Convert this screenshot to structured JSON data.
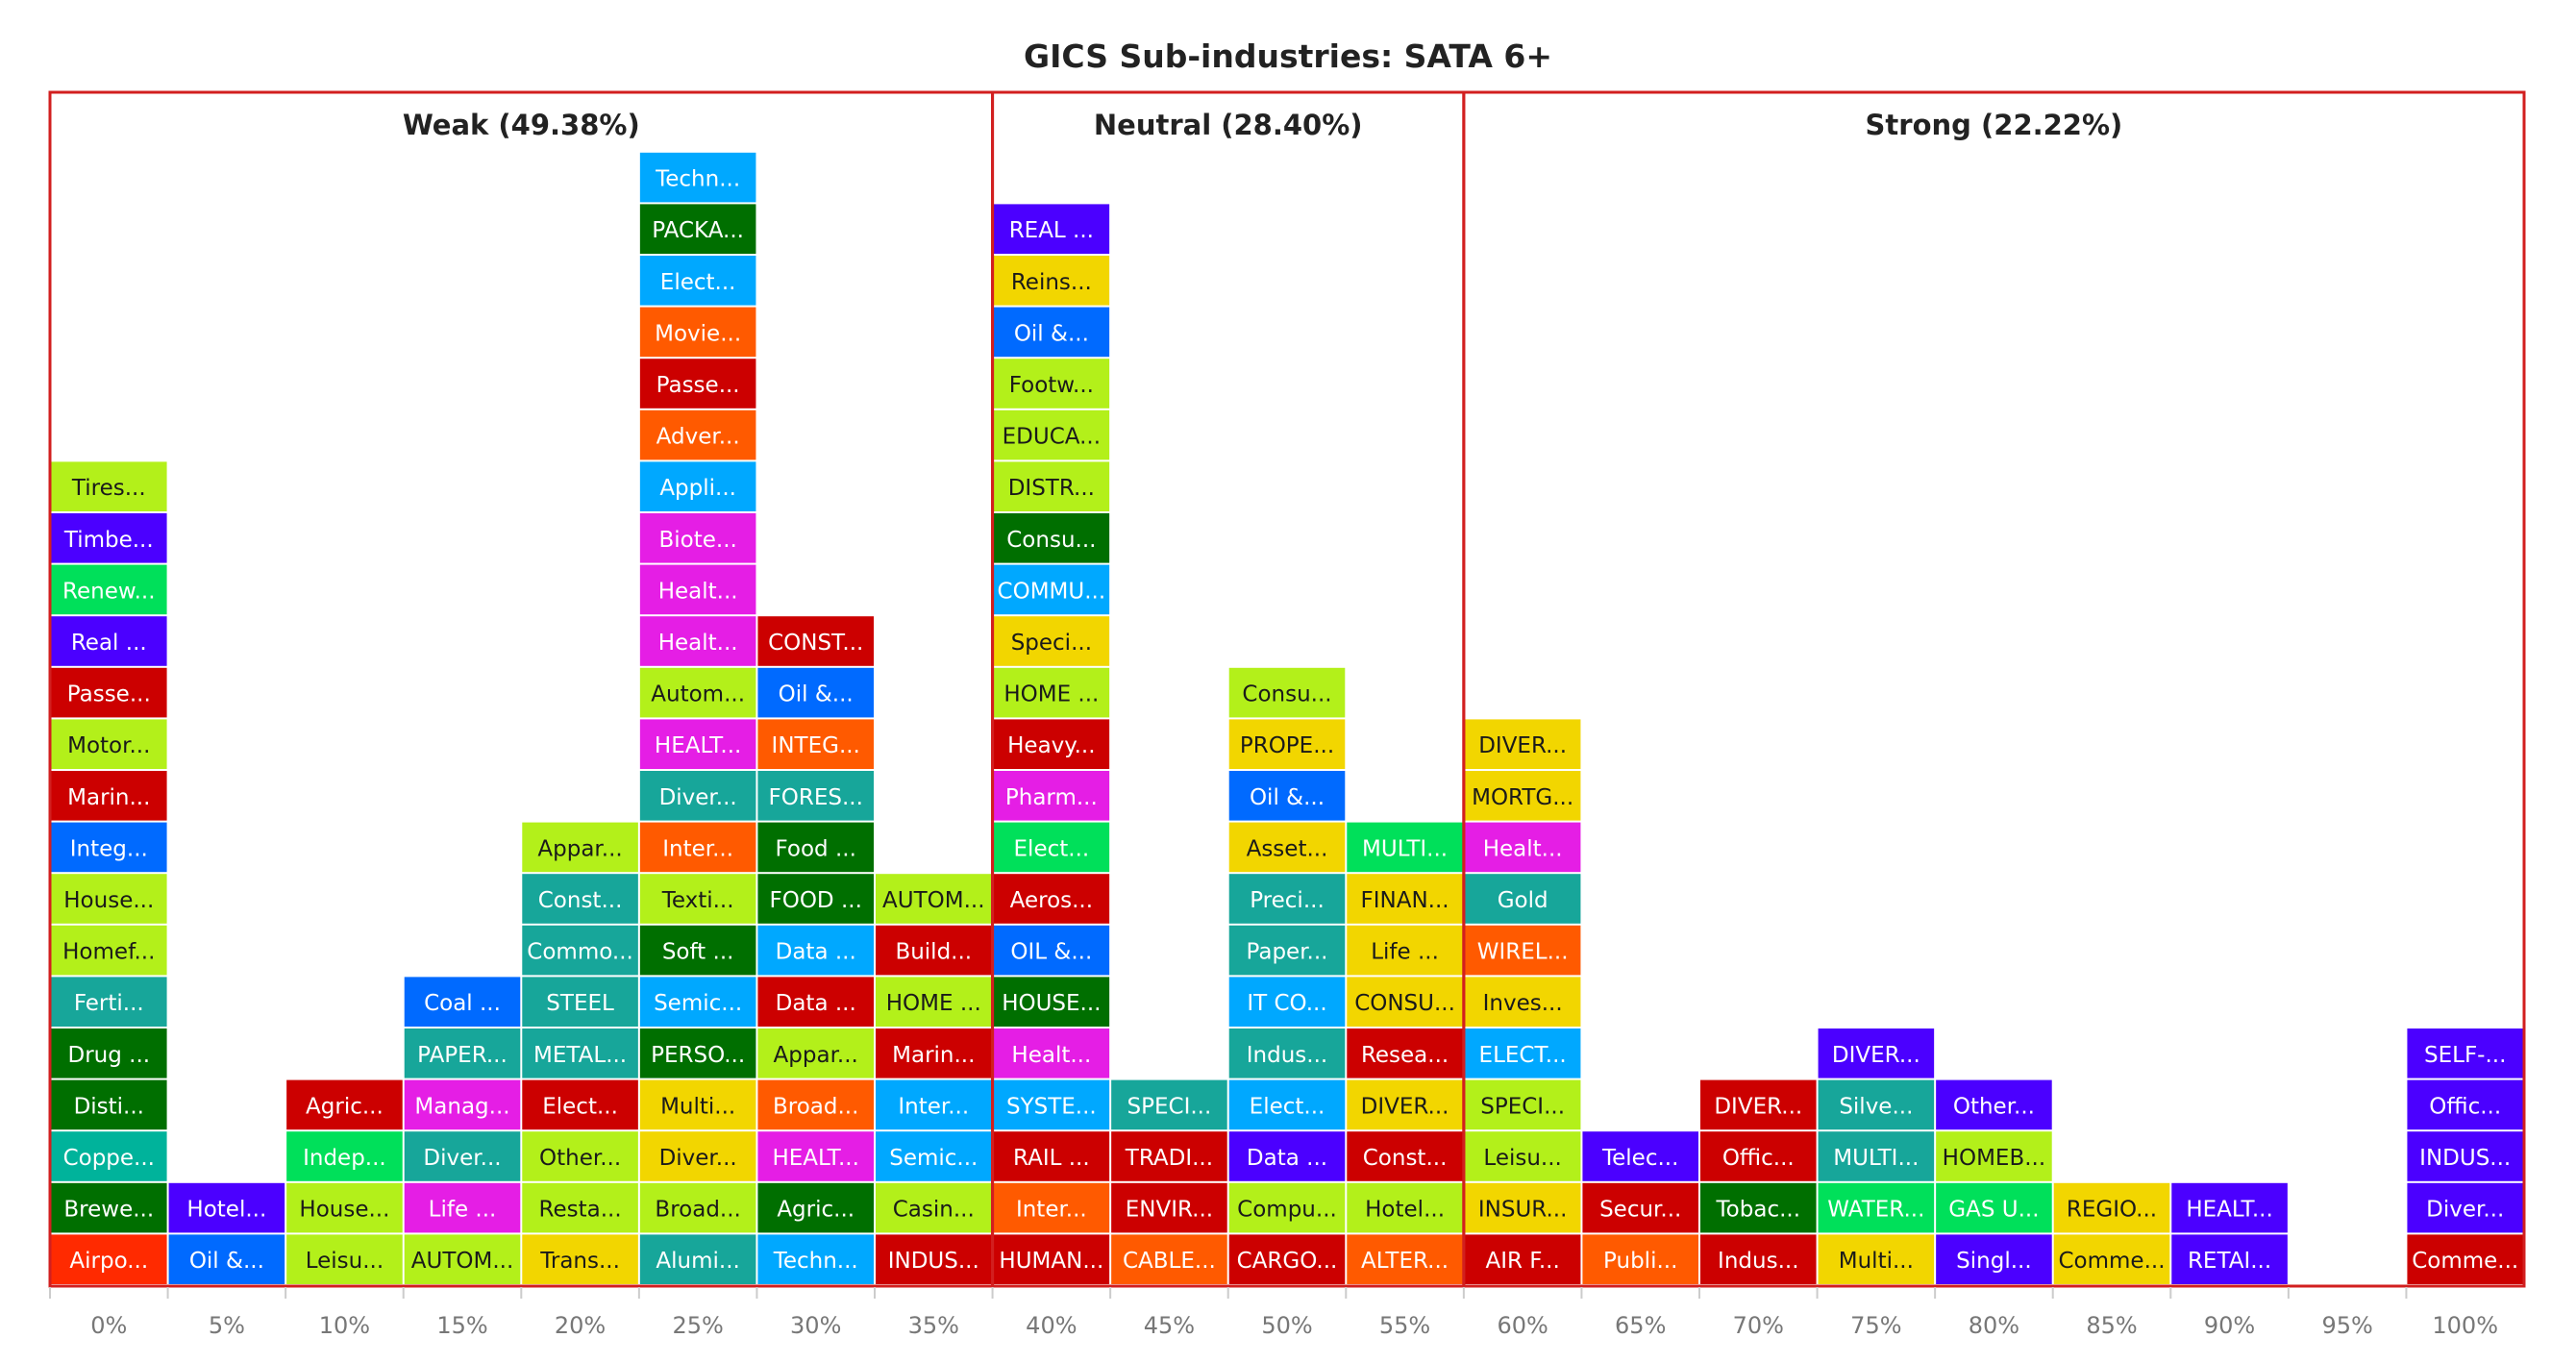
{
  "chart_data": {
    "type": "stacked-blocks",
    "title": "GICS Sub-industries: SATA 6+",
    "x_tick_labels": [
      "0%",
      "5%",
      "10%",
      "15%",
      "20%",
      "25%",
      "30%",
      "35%",
      "40%",
      "45%",
      "50%",
      "55%",
      "60%",
      "65%",
      "70%",
      "75%",
      "80%",
      "85%",
      "90%",
      "95%",
      "100%"
    ],
    "zones": [
      {
        "label": "Weak (49.38%)",
        "from_col": 0,
        "to_col": 7
      },
      {
        "label": "Neutral (28.40%)",
        "from_col": 8,
        "to_col": 11
      },
      {
        "label": "Strong (22.22%)",
        "from_col": 12,
        "to_col": 20
      }
    ],
    "zone_border_color": "#d21f1f",
    "columns": [
      {
        "x": "0%",
        "cells": [
          {
            "t": "Airpo...",
            "c": "#ff2a00"
          },
          {
            "t": "Brewe...",
            "c": "#006f00"
          },
          {
            "t": "Coppe...",
            "c": "#00b39b"
          },
          {
            "t": "Disti...",
            "c": "#006f00"
          },
          {
            "t": "Drug ...",
            "c": "#006f00"
          },
          {
            "t": "Ferti...",
            "c": "#17a69a"
          },
          {
            "t": "Homef...",
            "c": "#b3f01a"
          },
          {
            "t": "House...",
            "c": "#b3f01a"
          },
          {
            "t": "Integ...",
            "c": "#006aff"
          },
          {
            "t": "Marin...",
            "c": "#cc0000"
          },
          {
            "t": "Motor...",
            "c": "#b3f01a"
          },
          {
            "t": "Passe...",
            "c": "#cc0000"
          },
          {
            "t": "Real ...",
            "c": "#4b00ff"
          },
          {
            "t": "Renew...",
            "c": "#00e05a"
          },
          {
            "t": "Timbe...",
            "c": "#4b00ff"
          },
          {
            "t": "Tires...",
            "c": "#b3f01a"
          }
        ]
      },
      {
        "x": "5%",
        "cells": [
          {
            "t": "Oil &...",
            "c": "#006aff"
          },
          {
            "t": "Hotel...",
            "c": "#4b00ff"
          }
        ]
      },
      {
        "x": "10%",
        "cells": [
          {
            "t": "Leisu...",
            "c": "#b3f01a"
          },
          {
            "t": "House...",
            "c": "#b3f01a"
          },
          {
            "t": "Indep...",
            "c": "#00e05a"
          },
          {
            "t": "Agric...",
            "c": "#cc0000"
          }
        ]
      },
      {
        "x": "15%",
        "cells": [
          {
            "t": "AUTOM...",
            "c": "#b3f01a"
          },
          {
            "t": "Life ...",
            "c": "#e51ee5"
          },
          {
            "t": "Diver...",
            "c": "#17a69a"
          },
          {
            "t": "Manag...",
            "c": "#e51ee5"
          },
          {
            "t": "PAPER...",
            "c": "#17a69a"
          },
          {
            "t": "Coal ...",
            "c": "#006aff"
          }
        ]
      },
      {
        "x": "20%",
        "cells": [
          {
            "t": "Trans...",
            "c": "#f2d600"
          },
          {
            "t": "Resta...",
            "c": "#b3f01a"
          },
          {
            "t": "Other...",
            "c": "#b3f01a"
          },
          {
            "t": "Elect...",
            "c": "#cc0000"
          },
          {
            "t": "METAL...",
            "c": "#17a69a"
          },
          {
            "t": "STEEL",
            "c": "#17a69a"
          },
          {
            "t": "Commo...",
            "c": "#17a69a"
          },
          {
            "t": "Const...",
            "c": "#17a69a"
          },
          {
            "t": "Appar...",
            "c": "#b3f01a"
          }
        ]
      },
      {
        "x": "25%",
        "cells": [
          {
            "t": "Alumi...",
            "c": "#17a69a"
          },
          {
            "t": "Broad...",
            "c": "#b3f01a"
          },
          {
            "t": "Diver...",
            "c": "#f2d600"
          },
          {
            "t": "Multi...",
            "c": "#f2d600"
          },
          {
            "t": "PERSO...",
            "c": "#006f00"
          },
          {
            "t": "Semic...",
            "c": "#00a8ff"
          },
          {
            "t": "Soft ...",
            "c": "#006f00"
          },
          {
            "t": "Texti...",
            "c": "#b3f01a"
          },
          {
            "t": "Inter...",
            "c": "#ff5a00"
          },
          {
            "t": "Diver...",
            "c": "#17a69a"
          },
          {
            "t": "HEALT...",
            "c": "#e51ee5"
          },
          {
            "t": "Autom...",
            "c": "#b3f01a"
          },
          {
            "t": "Healt...",
            "c": "#e51ee5"
          },
          {
            "t": "Healt...",
            "c": "#e51ee5"
          },
          {
            "t": "Biote...",
            "c": "#e51ee5"
          },
          {
            "t": "Appli...",
            "c": "#00a8ff"
          },
          {
            "t": "Adver...",
            "c": "#ff5a00"
          },
          {
            "t": "Passe...",
            "c": "#cc0000"
          },
          {
            "t": "Movie...",
            "c": "#ff5a00"
          },
          {
            "t": "Elect...",
            "c": "#00a8ff"
          },
          {
            "t": "PACKA...",
            "c": "#006f00"
          },
          {
            "t": "Techn...",
            "c": "#00a8ff"
          }
        ]
      },
      {
        "x": "30%",
        "cells": [
          {
            "t": "Techn...",
            "c": "#00a8ff"
          },
          {
            "t": "Agric...",
            "c": "#006f00"
          },
          {
            "t": "HEALT...",
            "c": "#e51ee5"
          },
          {
            "t": "Broad...",
            "c": "#ff5a00"
          },
          {
            "t": "Appar...",
            "c": "#b3f01a"
          },
          {
            "t": "Data ...",
            "c": "#cc0000"
          },
          {
            "t": "Data ...",
            "c": "#00a8ff"
          },
          {
            "t": "FOOD ...",
            "c": "#006f00"
          },
          {
            "t": "Food ...",
            "c": "#006f00"
          },
          {
            "t": "FORES...",
            "c": "#17a69a"
          },
          {
            "t": "INTEG...",
            "c": "#ff5a00"
          },
          {
            "t": "Oil &...",
            "c": "#006aff"
          },
          {
            "t": "CONST...",
            "c": "#cc0000"
          }
        ]
      },
      {
        "x": "35%",
        "cells": [
          {
            "t": "INDUS...",
            "c": "#cc0000"
          },
          {
            "t": "Casin...",
            "c": "#b3f01a"
          },
          {
            "t": "Semic...",
            "c": "#00a8ff"
          },
          {
            "t": "Inter...",
            "c": "#00a8ff"
          },
          {
            "t": "Marin...",
            "c": "#cc0000"
          },
          {
            "t": "HOME ...",
            "c": "#b3f01a"
          },
          {
            "t": "Build...",
            "c": "#cc0000"
          },
          {
            "t": "AUTOM...",
            "c": "#b3f01a"
          }
        ]
      },
      {
        "x": "40%",
        "cells": [
          {
            "t": "HUMAN...",
            "c": "#cc0000"
          },
          {
            "t": "Inter...",
            "c": "#ff5a00"
          },
          {
            "t": "RAIL ...",
            "c": "#cc0000"
          },
          {
            "t": "SYSTE...",
            "c": "#00a8ff"
          },
          {
            "t": "Healt...",
            "c": "#e51ee5"
          },
          {
            "t": "HOUSE...",
            "c": "#006f00"
          },
          {
            "t": "OIL &...",
            "c": "#006aff"
          },
          {
            "t": "Aeros...",
            "c": "#cc0000"
          },
          {
            "t": "Elect...",
            "c": "#00e05a"
          },
          {
            "t": "Pharm...",
            "c": "#e51ee5"
          },
          {
            "t": "Heavy...",
            "c": "#cc0000"
          },
          {
            "t": "HOME ...",
            "c": "#b3f01a"
          },
          {
            "t": "Speci...",
            "c": "#f2d600"
          },
          {
            "t": "COMMU...",
            "c": "#00a8ff"
          },
          {
            "t": "Consu...",
            "c": "#006f00"
          },
          {
            "t": "DISTR...",
            "c": "#b3f01a"
          },
          {
            "t": "EDUCA...",
            "c": "#b3f01a"
          },
          {
            "t": "Footw...",
            "c": "#b3f01a"
          },
          {
            "t": "Oil &...",
            "c": "#006aff"
          },
          {
            "t": "Reins...",
            "c": "#f2d600"
          },
          {
            "t": "REAL ...",
            "c": "#4b00ff"
          }
        ]
      },
      {
        "x": "45%",
        "cells": [
          {
            "t": "CABLE...",
            "c": "#ff5a00"
          },
          {
            "t": "ENVIR...",
            "c": "#cc0000"
          },
          {
            "t": "TRADI...",
            "c": "#cc0000"
          },
          {
            "t": "SPECI...",
            "c": "#17a69a"
          }
        ]
      },
      {
        "x": "50%",
        "cells": [
          {
            "t": "CARGO...",
            "c": "#cc0000"
          },
          {
            "t": "Compu...",
            "c": "#b3f01a"
          },
          {
            "t": "Data ...",
            "c": "#4b00ff"
          },
          {
            "t": "Elect...",
            "c": "#00a8ff"
          },
          {
            "t": "Indus...",
            "c": "#17a69a"
          },
          {
            "t": "IT CO...",
            "c": "#00a8ff"
          },
          {
            "t": "Paper...",
            "c": "#17a69a"
          },
          {
            "t": "Preci...",
            "c": "#17a69a"
          },
          {
            "t": "Asset...",
            "c": "#f2d600"
          },
          {
            "t": "Oil &...",
            "c": "#006aff"
          },
          {
            "t": "PROPE...",
            "c": "#f2d600"
          },
          {
            "t": "Consu...",
            "c": "#b3f01a"
          }
        ]
      },
      {
        "x": "55%",
        "cells": [
          {
            "t": "ALTER...",
            "c": "#ff5a00"
          },
          {
            "t": "Hotel...",
            "c": "#b3f01a"
          },
          {
            "t": "Const...",
            "c": "#cc0000"
          },
          {
            "t": "DIVER...",
            "c": "#f2d600"
          },
          {
            "t": "Resea...",
            "c": "#cc0000"
          },
          {
            "t": "CONSU...",
            "c": "#f2d600"
          },
          {
            "t": "Life ...",
            "c": "#f2d600"
          },
          {
            "t": "FINAN...",
            "c": "#f2d600"
          },
          {
            "t": "MULTI...",
            "c": "#00e05a"
          }
        ]
      },
      {
        "x": "60%",
        "cells": [
          {
            "t": "AIR F...",
            "c": "#cc0000"
          },
          {
            "t": "INSUR...",
            "c": "#f2d600"
          },
          {
            "t": "Leisu...",
            "c": "#b3f01a"
          },
          {
            "t": "SPECI...",
            "c": "#b3f01a"
          },
          {
            "t": "ELECT...",
            "c": "#00a8ff"
          },
          {
            "t": "Inves...",
            "c": "#f2d600"
          },
          {
            "t": "WIREL...",
            "c": "#ff5a00"
          },
          {
            "t": "Gold",
            "c": "#17a69a"
          },
          {
            "t": "Healt...",
            "c": "#e51ee5"
          },
          {
            "t": "MORTG...",
            "c": "#f2d600"
          },
          {
            "t": "DIVER...",
            "c": "#f2d600"
          }
        ]
      },
      {
        "x": "65%",
        "cells": [
          {
            "t": "Publi...",
            "c": "#ff5a00"
          },
          {
            "t": "Secur...",
            "c": "#cc0000"
          },
          {
            "t": "Telec...",
            "c": "#4b00ff"
          }
        ]
      },
      {
        "x": "70%",
        "cells": [
          {
            "t": "Indus...",
            "c": "#cc0000"
          },
          {
            "t": "Tobac...",
            "c": "#006f00"
          },
          {
            "t": "Offic...",
            "c": "#cc0000"
          },
          {
            "t": "DIVER...",
            "c": "#cc0000"
          }
        ]
      },
      {
        "x": "75%",
        "cells": [
          {
            "t": "Multi...",
            "c": "#f2d600"
          },
          {
            "t": "WATER...",
            "c": "#00e05a"
          },
          {
            "t": "MULTI...",
            "c": "#17a69a"
          },
          {
            "t": "Silve...",
            "c": "#17a69a"
          },
          {
            "t": "DIVER...",
            "c": "#4b00ff"
          }
        ]
      },
      {
        "x": "80%",
        "cells": [
          {
            "t": "Singl...",
            "c": "#4b00ff"
          },
          {
            "t": "GAS U...",
            "c": "#00e05a"
          },
          {
            "t": "HOMEB...",
            "c": "#b3f01a"
          },
          {
            "t": "Other...",
            "c": "#4b00ff"
          }
        ]
      },
      {
        "x": "85%",
        "cells": [
          {
            "t": "Comme...",
            "c": "#f2d600"
          },
          {
            "t": "REGIO...",
            "c": "#f2d600"
          }
        ]
      },
      {
        "x": "90%",
        "cells": [
          {
            "t": "RETAI...",
            "c": "#4b00ff"
          },
          {
            "t": "HEALT...",
            "c": "#4b00ff"
          }
        ]
      },
      {
        "x": "95%",
        "cells": []
      },
      {
        "x": "100%",
        "cells": [
          {
            "t": "Comme...",
            "c": "#cc0000"
          },
          {
            "t": "Diver...",
            "c": "#4b00ff"
          },
          {
            "t": "INDUS...",
            "c": "#4b00ff"
          },
          {
            "t": "Offic...",
            "c": "#4b00ff"
          },
          {
            "t": "SELF-...",
            "c": "#4b00ff"
          }
        ]
      }
    ]
  }
}
